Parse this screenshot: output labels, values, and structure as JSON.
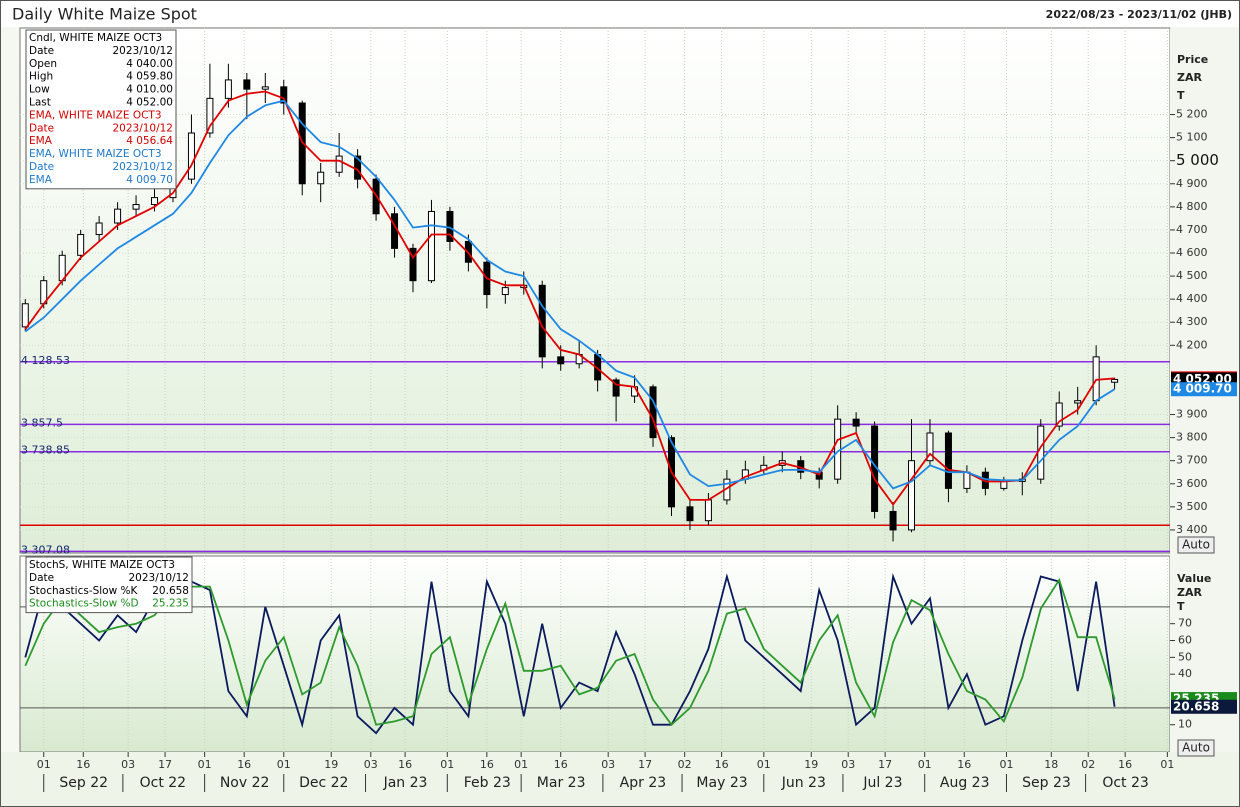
{
  "chart_data": [
    {
      "type": "candlestick",
      "title": "Daily White Maize Spot",
      "date_range": "2022/08/23 - 2023/11/02 (JHB)",
      "xlim": [
        "2022-08-23",
        "2023-11-02"
      ],
      "xticks": [
        {
          "value": "2022-09-01",
          "label": "01"
        },
        {
          "value": "2022-09-16",
          "label": "16"
        },
        {
          "value": "2022-10-03",
          "label": "03"
        },
        {
          "value": "2022-10-17",
          "label": "17"
        },
        {
          "value": "2022-11-01",
          "label": "01"
        },
        {
          "value": "2022-11-16",
          "label": "16"
        },
        {
          "value": "2022-12-01",
          "label": "01"
        },
        {
          "value": "2022-12-19",
          "label": "19"
        },
        {
          "value": "2023-01-03",
          "label": "03"
        },
        {
          "value": "2023-01-16",
          "label": "16"
        },
        {
          "value": "2023-02-01",
          "label": "01"
        },
        {
          "value": "2023-02-16",
          "label": "16"
        },
        {
          "value": "2023-03-01",
          "label": "01"
        },
        {
          "value": "2023-03-16",
          "label": "16"
        },
        {
          "value": "2023-04-03",
          "label": "03"
        },
        {
          "value": "2023-04-17",
          "label": "17"
        },
        {
          "value": "2023-05-02",
          "label": "02"
        },
        {
          "value": "2023-05-16",
          "label": "16"
        },
        {
          "value": "2023-06-01",
          "label": "01"
        },
        {
          "value": "2023-06-19",
          "label": "19"
        },
        {
          "value": "2023-07-03",
          "label": "03"
        },
        {
          "value": "2023-07-17",
          "label": "17"
        },
        {
          "value": "2023-08-01",
          "label": "01"
        },
        {
          "value": "2023-08-16",
          "label": "16"
        },
        {
          "value": "2023-09-01",
          "label": "01"
        },
        {
          "value": "2023-09-18",
          "label": "18"
        },
        {
          "value": "2023-10-02",
          "label": "02"
        },
        {
          "value": "2023-10-16",
          "label": "16"
        },
        {
          "value": "2023-11-01",
          "label": "01"
        }
      ],
      "months": [
        {
          "value": "2022-09-01",
          "label": "Sep 22"
        },
        {
          "value": "2022-10-01",
          "label": "Oct 22"
        },
        {
          "value": "2022-11-01",
          "label": "Nov 22"
        },
        {
          "value": "2022-12-01",
          "label": "Dec 22"
        },
        {
          "value": "2023-01-01",
          "label": "Jan 23"
        },
        {
          "value": "2023-02-01",
          "label": "Feb 23"
        },
        {
          "value": "2023-03-01",
          "label": "Mar 23"
        },
        {
          "value": "2023-04-01",
          "label": "Apr 23"
        },
        {
          "value": "2023-05-01",
          "label": "May 23"
        },
        {
          "value": "2023-06-01",
          "label": "Jun 23"
        },
        {
          "value": "2023-07-01",
          "label": "Jul 23"
        },
        {
          "value": "2023-08-01",
          "label": "Aug 23"
        },
        {
          "value": "2023-09-01",
          "label": "Sep 23"
        },
        {
          "value": "2023-10-01",
          "label": "Oct 23"
        }
      ],
      "ylim": [
        3300,
        5575
      ],
      "yticks": [
        {
          "value": 3400,
          "label": "3 400"
        },
        {
          "value": 3500,
          "label": "3 500"
        },
        {
          "value": 3600,
          "label": "3 600"
        },
        {
          "value": 3700,
          "label": "3 700"
        },
        {
          "value": 3800,
          "label": "3 800"
        },
        {
          "value": 3900,
          "label": "3 900"
        },
        {
          "value": 4200,
          "label": "4 200"
        },
        {
          "value": 4300,
          "label": "4 300"
        },
        {
          "value": 4400,
          "label": "4 400"
        },
        {
          "value": 4500,
          "label": "4 500"
        },
        {
          "value": 4600,
          "label": "4 600"
        },
        {
          "value": 4700,
          "label": "4 700"
        },
        {
          "value": 4800,
          "label": "4 800"
        },
        {
          "value": 4900,
          "label": "4 900"
        },
        {
          "value": 5000,
          "label": "5 000"
        },
        {
          "value": 5100,
          "label": "5 100"
        },
        {
          "value": 5200,
          "label": "5 200"
        }
      ],
      "axis_label": [
        "Price",
        "ZAR",
        "T"
      ],
      "grid": true,
      "x": [
        "2022-08-25",
        "2022-09-01",
        "2022-09-08",
        "2022-09-15",
        "2022-09-22",
        "2022-09-29",
        "2022-10-06",
        "2022-10-13",
        "2022-10-20",
        "2022-10-27",
        "2022-11-03",
        "2022-11-10",
        "2022-11-17",
        "2022-11-24",
        "2022-12-01",
        "2022-12-08",
        "2022-12-15",
        "2022-12-22",
        "2022-12-29",
        "2023-01-05",
        "2023-01-12",
        "2023-01-19",
        "2023-01-26",
        "2023-02-02",
        "2023-02-09",
        "2023-02-16",
        "2023-02-23",
        "2023-03-02",
        "2023-03-09",
        "2023-03-16",
        "2023-03-23",
        "2023-03-30",
        "2023-04-06",
        "2023-04-13",
        "2023-04-20",
        "2023-04-27",
        "2023-05-04",
        "2023-05-11",
        "2023-05-18",
        "2023-05-25",
        "2023-06-01",
        "2023-06-08",
        "2023-06-15",
        "2023-06-22",
        "2023-06-29",
        "2023-07-06",
        "2023-07-13",
        "2023-07-20",
        "2023-07-27",
        "2023-08-03",
        "2023-08-10",
        "2023-08-17",
        "2023-08-24",
        "2023-08-31",
        "2023-09-07",
        "2023-09-14",
        "2023-09-21",
        "2023-09-28",
        "2023-10-05",
        "2023-10-12"
      ],
      "open": [
        4280,
        4380,
        4480,
        4590,
        4680,
        4730,
        4790,
        4810,
        4840,
        4920,
        5120,
        5270,
        5350,
        5310,
        5320,
        5250,
        4900,
        4950,
        5020,
        4920,
        4770,
        4620,
        4480,
        4780,
        4650,
        4560,
        4420,
        4450,
        4460,
        4150,
        4120,
        4160,
        4050,
        3980,
        4020,
        3800,
        3500,
        3440,
        3530,
        3620,
        3660,
        3680,
        3700,
        3650,
        3620,
        3880,
        3850,
        3480,
        3400,
        3700,
        3820,
        3580,
        3650,
        3580,
        3610,
        3620,
        3850,
        3950,
        3960,
        4040
      ],
      "high": [
        4400,
        4500,
        4610,
        4700,
        4760,
        4820,
        4850,
        4880,
        4960,
        5200,
        5420,
        5420,
        5380,
        5380,
        5350,
        5260,
        4990,
        5120,
        5050,
        4940,
        4800,
        4640,
        4830,
        4800,
        4680,
        4580,
        4480,
        4520,
        4480,
        4200,
        4220,
        4180,
        4060,
        4070,
        4030,
        3810,
        3530,
        3560,
        3660,
        3700,
        3720,
        3740,
        3720,
        3670,
        3940,
        3910,
        3870,
        3520,
        3880,
        3880,
        3830,
        3680,
        3670,
        3630,
        3650,
        3880,
        4000,
        4020,
        4200,
        4059.8
      ],
      "low": [
        4260,
        4360,
        4460,
        4570,
        4650,
        4700,
        4760,
        4780,
        4820,
        4900,
        5100,
        5230,
        5180,
        5250,
        5200,
        4850,
        4820,
        4930,
        4880,
        4740,
        4580,
        4430,
        4470,
        4610,
        4520,
        4360,
        4380,
        4420,
        4100,
        4090,
        4100,
        4000,
        3870,
        3950,
        3760,
        3460,
        3400,
        3420,
        3510,
        3600,
        3640,
        3650,
        3620,
        3580,
        3600,
        3820,
        3450,
        3350,
        3390,
        3680,
        3520,
        3560,
        3550,
        3570,
        3550,
        3600,
        3830,
        3900,
        3940,
        4010
      ],
      "close": [
        4380,
        4480,
        4590,
        4680,
        4730,
        4790,
        4810,
        4840,
        4920,
        5120,
        5270,
        5350,
        5310,
        5320,
        5250,
        4900,
        4950,
        5020,
        4920,
        4770,
        4620,
        4480,
        4780,
        4650,
        4560,
        4420,
        4450,
        4460,
        4150,
        4120,
        4160,
        4050,
        3980,
        4020,
        3800,
        3500,
        3440,
        3530,
        3620,
        3660,
        3680,
        3700,
        3650,
        3620,
        3880,
        3850,
        3480,
        3400,
        3700,
        3820,
        3580,
        3650,
        3580,
        3610,
        3620,
        3850,
        3950,
        3960,
        4150,
        4052
      ],
      "series": [
        {
          "color": "#e00000",
          "values": [
            4270,
            4380,
            4480,
            4580,
            4650,
            4720,
            4760,
            4800,
            4860,
            4980,
            5150,
            5260,
            5290,
            5300,
            5270,
            5080,
            5000,
            5000,
            4960,
            4850,
            4720,
            4580,
            4680,
            4680,
            4600,
            4490,
            4460,
            4460,
            4280,
            4180,
            4160,
            4100,
            4030,
            4020,
            3880,
            3650,
            3530,
            3530,
            3580,
            3630,
            3660,
            3690,
            3670,
            3640,
            3790,
            3820,
            3620,
            3510,
            3620,
            3730,
            3660,
            3650,
            3610,
            3610,
            3615,
            3760,
            3870,
            3920,
            4050,
            4056.64
          ]
        },
        {
          "color": "#1e88e5",
          "values": [
            4260,
            4320,
            4400,
            4480,
            4550,
            4620,
            4670,
            4720,
            4770,
            4860,
            4990,
            5110,
            5190,
            5240,
            5260,
            5160,
            5080,
            5060,
            5010,
            4930,
            4830,
            4710,
            4720,
            4710,
            4660,
            4570,
            4520,
            4500,
            4370,
            4270,
            4220,
            4160,
            4090,
            4060,
            3960,
            3780,
            3640,
            3590,
            3600,
            3620,
            3640,
            3660,
            3660,
            3650,
            3740,
            3790,
            3680,
            3580,
            3610,
            3680,
            3650,
            3650,
            3620,
            3615,
            3615,
            3700,
            3790,
            3850,
            3960,
            4009.7
          ]
        }
      ],
      "levels": [
        {
          "value": 4128.53,
          "label": "4 128.53",
          "color": "#8a2be2"
        },
        {
          "value": 3857.5,
          "label": "3 857.5",
          "color": "#8a2be2"
        },
        {
          "value": 3738.85,
          "label": "3 738.85",
          "color": "#8a2be2"
        },
        {
          "value": 3307.08,
          "label": "3 307.08",
          "color": "#8a2be2"
        },
        {
          "value": 3420,
          "color": "#e00000"
        }
      ],
      "price_tags": [
        {
          "value": 4056.64,
          "label": "4 056.64",
          "color": "#e00000"
        },
        {
          "value": 4052,
          "label": "4 052.00",
          "color": "#000000"
        },
        {
          "value": 4009.7,
          "label": "4 009.70",
          "color": "#1e88e5"
        }
      ],
      "info": [
        {
          "text": "Cndl, WHITE MAIZE OCT3",
          "color": "#000000"
        },
        {
          "text": "Date",
          "value": "2023/10/12",
          "color": "#000000"
        },
        {
          "text": "Open",
          "value": "4 040.00",
          "color": "#000000"
        },
        {
          "text": "High",
          "value": "4 059.80",
          "color": "#000000"
        },
        {
          "text": "Low",
          "value": "4 010.00",
          "color": "#000000"
        },
        {
          "text": "Last",
          "value": "4 052.00",
          "color": "#000000"
        },
        {
          "text": "EMA, WHITE MAIZE OCT3",
          "color": "#d00000"
        },
        {
          "text": "Date",
          "value": "2023/10/12",
          "color": "#d00000"
        },
        {
          "text": "EMA",
          "value": "4 056.64",
          "color": "#d00000"
        },
        {
          "text": "EMA, WHITE MAIZE OCT3",
          "color": "#1e78c8"
        },
        {
          "text": "Date",
          "value": "2023/10/12",
          "color": "#1e78c8"
        },
        {
          "text": "EMA",
          "value": "4 009.70",
          "color": "#1e78c8"
        }
      ],
      "button": "Auto"
    },
    {
      "type": "line",
      "ylim": [
        -5,
        109
      ],
      "yticks": [
        10,
        40,
        50,
        60,
        70
      ],
      "axis_label": [
        "Value",
        "ZAR",
        "T"
      ],
      "levels": [
        80,
        20
      ],
      "level_color": "#555555",
      "series": [
        {
          "color": "#0b1a5c",
          "values": [
            50,
            90,
            80,
            70,
            60,
            75,
            65,
            85,
            90,
            95,
            90,
            30,
            15,
            80,
            45,
            10,
            60,
            75,
            15,
            5,
            20,
            10,
            95,
            30,
            15,
            95,
            70,
            15,
            70,
            20,
            35,
            30,
            65,
            40,
            10,
            10,
            30,
            55,
            98,
            60,
            50,
            40,
            30,
            90,
            60,
            10,
            20,
            98,
            70,
            85,
            20,
            40,
            10,
            15,
            60,
            98,
            95,
            30,
            95,
            20.658
          ]
        },
        {
          "color": "#2e9a2e",
          "values": [
            45,
            70,
            85,
            75,
            65,
            68,
            70,
            75,
            88,
            92,
            92,
            60,
            22,
            48,
            62,
            28,
            35,
            68,
            45,
            10,
            12,
            15,
            52,
            62,
            22,
            55,
            82,
            42,
            42,
            45,
            28,
            32,
            48,
            52,
            25,
            10,
            20,
            42,
            76,
            79,
            55,
            45,
            35,
            60,
            75,
            35,
            15,
            59,
            84,
            78,
            52,
            30,
            25,
            12,
            38,
            79,
            96,
            62,
            62,
            25.235
          ]
        }
      ],
      "price_tags": [
        {
          "value": 25.235,
          "label": "25.235",
          "color": "#1a8a1a"
        },
        {
          "value": 20.658,
          "label": "20.658",
          "color": "#0b1a3c"
        }
      ],
      "info": [
        {
          "text": "StochS, WHITE MAIZE OCT3",
          "color": "#000000"
        },
        {
          "text": "Date",
          "value": "2023/10/12",
          "color": "#000000"
        },
        {
          "text": "Stochastics-Slow %K",
          "value": "20.658",
          "color": "#000000"
        },
        {
          "text": "Stochastics-Slow %D",
          "value": "25.235",
          "color": "#1a8a1a"
        }
      ],
      "button": "Auto"
    }
  ]
}
